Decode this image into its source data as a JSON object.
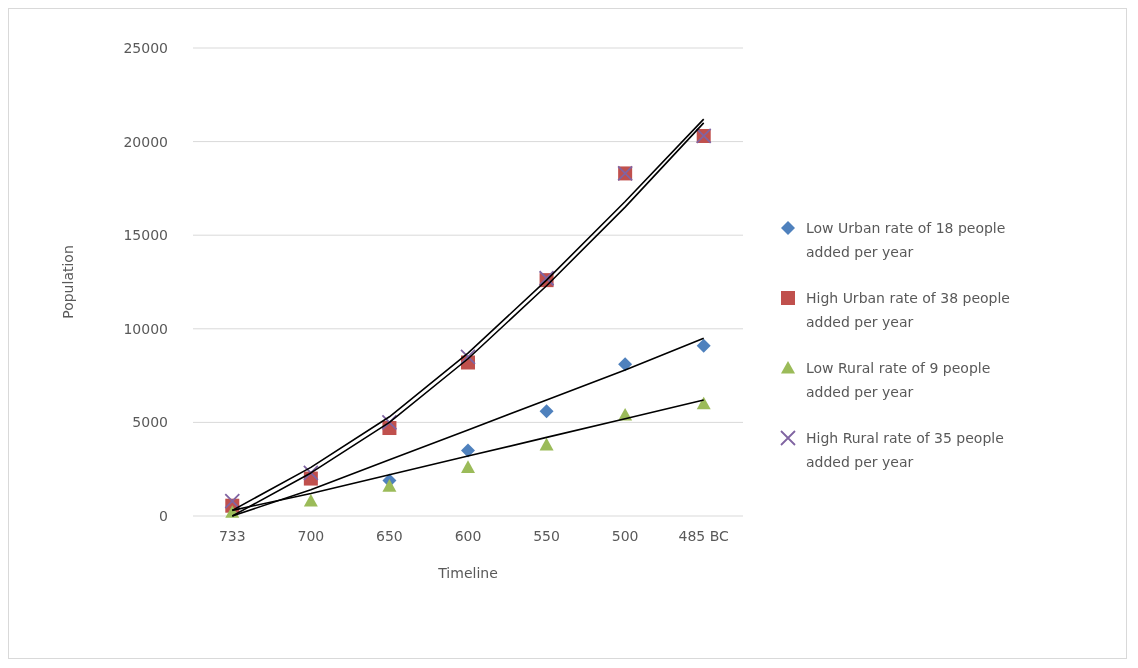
{
  "chart_data": {
    "type": "scatter",
    "xlabel": "Timeline",
    "ylabel": "Population",
    "categories": [
      "733",
      "700",
      "650",
      "600",
      "550",
      "500",
      "485 BC"
    ],
    "series": [
      {
        "name": "Low Urban rate of 18 people added per year",
        "color": "#4f81bd",
        "marker": "diamond",
        "values": [
          null,
          null,
          1900,
          3500,
          5600,
          8100,
          9100
        ]
      },
      {
        "name": "High Urban rate of 38 people added per year",
        "color": "#c0504d",
        "marker": "square",
        "values": [
          550,
          2000,
          4700,
          8200,
          12600,
          18300,
          20300
        ]
      },
      {
        "name": "Low Rural rate of 9 people added per year",
        "color": "#9bbb59",
        "marker": "triangle",
        "values": [
          200,
          800,
          1600,
          2600,
          3800,
          5400,
          6000
        ]
      },
      {
        "name": "High Rural rate of 35 people added per year",
        "color": "#8064a2",
        "marker": "cross",
        "values": [
          800,
          2300,
          5000,
          8500,
          12700,
          18300,
          20300
        ]
      },
      {
        "type": "line",
        "color": "#000000",
        "marker": "none",
        "values": [
          0,
          1400,
          3000,
          4600,
          6200,
          7800,
          9500
        ]
      },
      {
        "type": "line",
        "color": "#000000",
        "marker": "none",
        "values": [
          300,
          1200,
          2200,
          3200,
          4200,
          5200,
          6200
        ]
      },
      {
        "type": "line",
        "color": "#000000",
        "marker": "none",
        "values": [
          0,
          2300,
          5000,
          8400,
          12300,
          16500,
          21000
        ]
      },
      {
        "type": "line",
        "color": "#000000",
        "marker": "none",
        "values": [
          300,
          2600,
          5300,
          8700,
          12600,
          16800,
          21200
        ]
      }
    ],
    "ylim": [
      0,
      25000
    ],
    "yticks": [
      0,
      5000,
      10000,
      15000,
      20000,
      25000
    ],
    "grid": "y",
    "legend": "right"
  }
}
